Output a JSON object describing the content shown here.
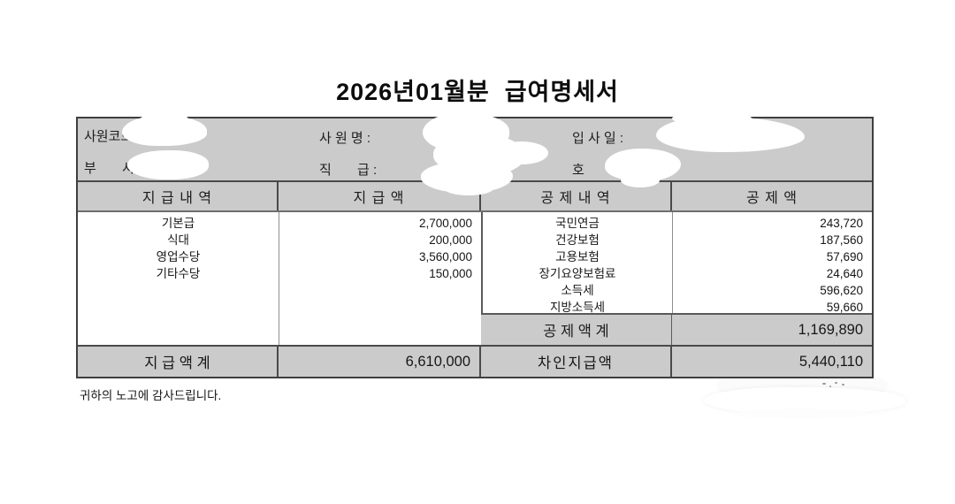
{
  "document": {
    "title": "2026년01월분  급여명세서",
    "footer_message": "귀하의 노고에 감사드립니다."
  },
  "employee": {
    "code_label": "사원코드 :",
    "name_label": "사 원 명 :",
    "hire_date_label": "입 사 일 :",
    "dept_label": "부       서 :",
    "position_label": "직       급 :",
    "grade_label": "호       봉 :",
    "code_value": "",
    "name_value": "",
    "hire_date_value": "",
    "dept_value": "",
    "position_value": "",
    "grade_value": ""
  },
  "table": {
    "headers": {
      "pay_detail": "지 급 내 역",
      "pay_amount": "지 급 액",
      "deduction_detail": "공 제 내 역",
      "deduction_amount": "공 제 액"
    },
    "payments": [
      {
        "name": "기본급",
        "amount": "2,700,000"
      },
      {
        "name": "식대",
        "amount": "200,000"
      },
      {
        "name": "영업수당",
        "amount": "3,560,000"
      },
      {
        "name": "기타수당",
        "amount": "150,000"
      }
    ],
    "deductions": [
      {
        "name": "국민연금",
        "amount": "243,720"
      },
      {
        "name": "건강보험",
        "amount": "187,560"
      },
      {
        "name": "고용보험",
        "amount": "57,690"
      },
      {
        "name": "장기요양보험료",
        "amount": "24,640"
      },
      {
        "name": "소득세",
        "amount": "596,620"
      },
      {
        "name": "지방소득세",
        "amount": "59,660"
      }
    ],
    "deduction_total": {
      "label": "공 제 액 계",
      "amount": "1,169,890"
    },
    "payment_total": {
      "label": "지 급 액 계",
      "amount": "6,610,000"
    },
    "net_pay": {
      "label": "차인지급액",
      "amount": "5,440,110"
    }
  },
  "colors": {
    "header_gray": "#cbcbcb",
    "border_dark": "#4a4a4a",
    "text": "#111111"
  }
}
